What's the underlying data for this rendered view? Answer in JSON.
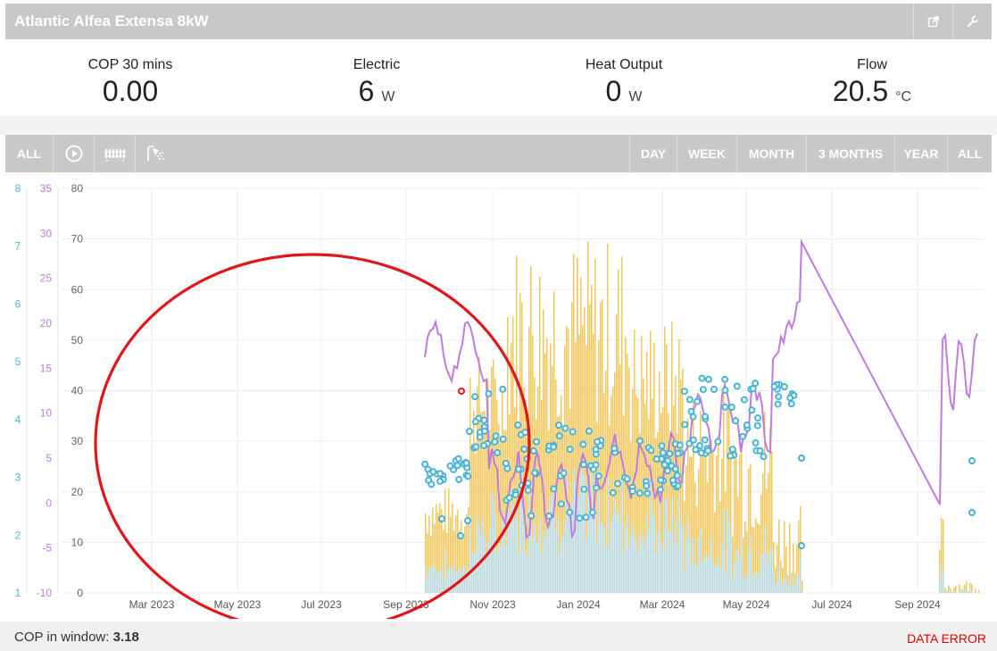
{
  "app": {
    "title": "Atlantic Alfea Extensa 8kW"
  },
  "header_icons": [
    "external-link-icon",
    "wrench-icon"
  ],
  "stats": [
    {
      "label": "COP 30 mins",
      "value": "0.00",
      "unit": ""
    },
    {
      "label": "Electric",
      "value": "6",
      "unit": "W"
    },
    {
      "label": "Heat Output",
      "value": "0",
      "unit": "W"
    },
    {
      "label": "Flow",
      "value": "20.5",
      "unit": "°C"
    }
  ],
  "toolbar": {
    "left": {
      "all": "ALL",
      "icons": [
        "play-icon",
        "radiator-icon",
        "shower-icon"
      ]
    },
    "ranges": [
      "DAY",
      "WEEK",
      "MONTH",
      "3 MONTHS",
      "YEAR",
      "ALL"
    ]
  },
  "chart_data": {
    "type": "bar",
    "x_ticks": [
      "Mar 2023",
      "May 2023",
      "Jul 2023",
      "Sep 2023",
      "Nov 2023",
      "Jan 2024",
      "Mar 2024",
      "May 2024",
      "Jul 2024",
      "Sep 2024"
    ],
    "axes": {
      "cop": {
        "ticks": [
          "8",
          "7",
          "6",
          "5",
          "4",
          "3",
          "2",
          "1"
        ],
        "color": "#4db8d8",
        "ylim": [
          1,
          8
        ]
      },
      "temperature": {
        "ticks": [
          "35",
          "30",
          "25",
          "20",
          "15",
          "10",
          "5",
          "0",
          "-5",
          "-10"
        ],
        "color": "#c07ae0",
        "ylim": [
          -10,
          35
        ]
      },
      "energy": {
        "ticks": [
          "80",
          "70",
          "60",
          "50",
          "40",
          "30",
          "20",
          "10",
          "0"
        ],
        "color": "#666666",
        "ylim": [
          0,
          80
        ]
      }
    },
    "series": [
      {
        "kind": "bar",
        "color": "#f0c75a",
        "values": []
      },
      {
        "kind": "bar",
        "color": "#b8d8dc",
        "values": []
      },
      {
        "kind": "line",
        "color": "#c07ae0",
        "values": []
      },
      {
        "kind": "scatter",
        "color": "#45b3d6",
        "values": []
      }
    ],
    "grid": true
  },
  "colors": {
    "bar": "#f0c75a",
    "bar2": "#b8d8dc",
    "line": "#c07ae0",
    "point": "#45b3d6",
    "annotation": "#e0161b",
    "toolbar": "#c8c8c8"
  },
  "footer": {
    "cop_label": "COP in window:",
    "cop_value": "3.18",
    "status": "DATA ERROR"
  }
}
